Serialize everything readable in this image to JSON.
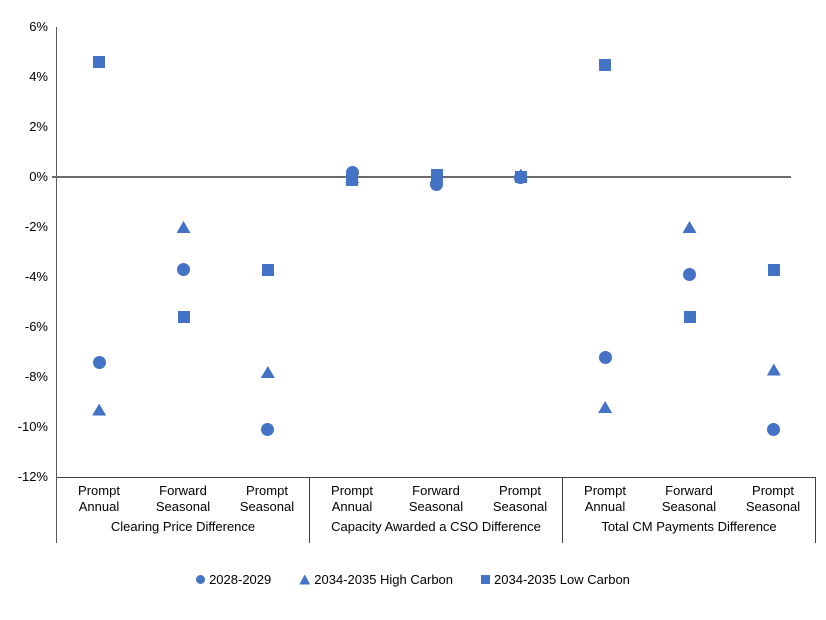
{
  "chart_data": {
    "type": "scatter",
    "title": "",
    "y_axis": {
      "max": 6,
      "min": -12,
      "step": 2,
      "unit": "%",
      "tick_labels": [
        "6%",
        "4%",
        "2%",
        "0%",
        "-2%",
        "-4%",
        "-6%",
        "-8%",
        "-10%",
        "-12%"
      ],
      "zero_line": true
    },
    "grid": false,
    "legend_position": "bottom",
    "categories": [
      [
        "Prompt",
        "Annual"
      ],
      [
        "Forward",
        "Seasonal"
      ],
      [
        "Prompt",
        "Seasonal"
      ],
      [
        "Prompt",
        "Annual"
      ],
      [
        "Forward",
        "Seasonal"
      ],
      [
        "Prompt",
        "Seasonal"
      ],
      [
        "Prompt",
        "Annual"
      ],
      [
        "Forward",
        "Seasonal"
      ],
      [
        "Prompt",
        "Seasonal"
      ]
    ],
    "groups": [
      {
        "label": "Clearing Price Difference",
        "span": 3
      },
      {
        "label": "Capacity Awarded a CSO Difference",
        "span": 3
      },
      {
        "label": "Total CM Payments Difference",
        "span": 3
      }
    ],
    "series": [
      {
        "name": "2028-2029",
        "marker": "circle",
        "color": "#4472C4",
        "values": [
          -7.4,
          -3.7,
          -10.1,
          0.2,
          -0.3,
          0.0,
          -7.2,
          -3.9,
          -10.1
        ]
      },
      {
        "name": "2034-2035 High Carbon",
        "marker": "triangle",
        "color": "#4472C4",
        "values": [
          -9.3,
          -2.0,
          -7.8,
          0.0,
          0.0,
          0.1,
          -9.2,
          -2.0,
          -7.7
        ]
      },
      {
        "name": "2034-2035 Low Carbon",
        "marker": "square",
        "color": "#4472C4",
        "values": [
          4.6,
          -5.6,
          -3.7,
          -0.1,
          0.1,
          0.0,
          4.5,
          -5.6,
          -3.7
        ]
      }
    ]
  },
  "colors": {
    "marker": "#4472C4",
    "axis_line": "#595959",
    "zero_line": "#6b6b6b",
    "border": "#404040",
    "text": "#000000",
    "background": "#ffffff"
  }
}
